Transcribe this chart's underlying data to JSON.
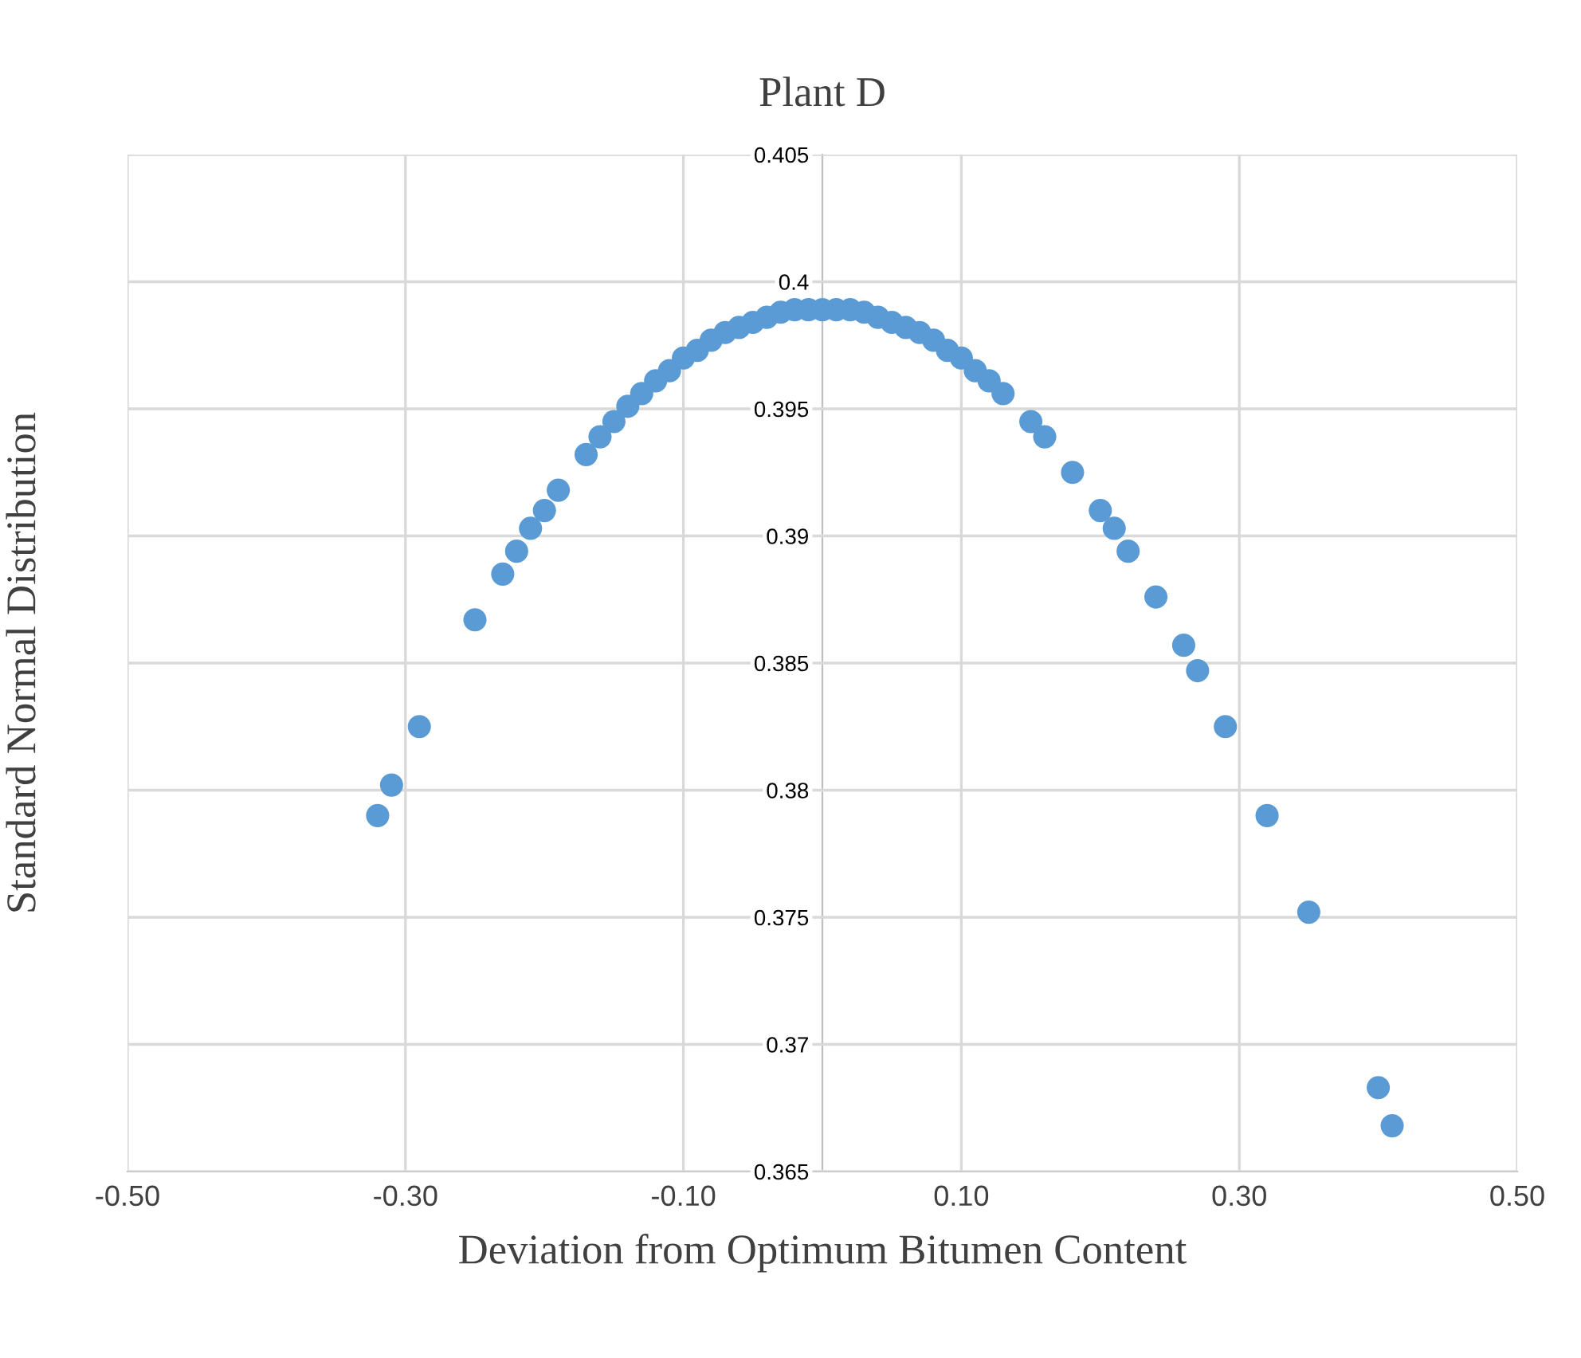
{
  "chart_data": {
    "type": "scatter",
    "title": "Plant D",
    "xlabel": "Deviation from Optimum Bitumen Content",
    "ylabel": "Standard Normal Distribution",
    "x": [
      -0.32,
      -0.31,
      -0.29,
      -0.25,
      -0.23,
      -0.22,
      -0.21,
      -0.2,
      -0.19,
      -0.17,
      -0.16,
      -0.15,
      -0.14,
      -0.13,
      -0.12,
      -0.11,
      -0.1,
      -0.09,
      -0.08,
      -0.07,
      -0.06,
      -0.05,
      -0.04,
      -0.03,
      -0.02,
      -0.01,
      0,
      0.01,
      0.02,
      0.03,
      0.04,
      0.05,
      0.06,
      0.07,
      0.08,
      0.09,
      0.1,
      0.11,
      0.12,
      0.13,
      0.15,
      0.16,
      0.18,
      0.2,
      0.21,
      0.22,
      0.24,
      0.26,
      0.27,
      0.29,
      0.32,
      0.35,
      0.4,
      0.41
    ],
    "series": [
      {
        "color": "#5b9bd5",
        "values": [
          0.379,
          0.3802,
          0.3825,
          0.3867,
          0.3885,
          0.3894,
          0.3903,
          0.391,
          0.3918,
          0.3932,
          0.3939,
          0.3945,
          0.3951,
          0.3956,
          0.3961,
          0.3965,
          0.397,
          0.3973,
          0.3977,
          0.398,
          0.3982,
          0.3984,
          0.3986,
          0.3988,
          0.3989,
          0.3989,
          0.3989,
          0.3989,
          0.3989,
          0.3988,
          0.3986,
          0.3984,
          0.3982,
          0.398,
          0.3977,
          0.3973,
          0.397,
          0.3965,
          0.3961,
          0.3956,
          0.3945,
          0.3939,
          0.3925,
          0.391,
          0.3903,
          0.3894,
          0.3876,
          0.3857,
          0.3847,
          0.3825,
          0.379,
          0.3752,
          0.3683,
          0.3668
        ]
      }
    ],
    "xlim": [
      -0.5,
      0.5
    ],
    "ylim": [
      0.365,
      0.405
    ],
    "xticks": [
      {
        "value": -0.5,
        "label": "-0.50"
      },
      {
        "value": -0.3,
        "label": "-0.30"
      },
      {
        "value": -0.1,
        "label": "-0.10"
      },
      {
        "value": 0.1,
        "label": "0.10"
      },
      {
        "value": 0.3,
        "label": "0.30"
      },
      {
        "value": 0.5,
        "label": "0.50"
      }
    ],
    "yticks": [
      0.365,
      0.37,
      0.375,
      0.38,
      0.385,
      0.39,
      0.395,
      0.4,
      0.405
    ],
    "grid": true,
    "marker": "circle"
  }
}
